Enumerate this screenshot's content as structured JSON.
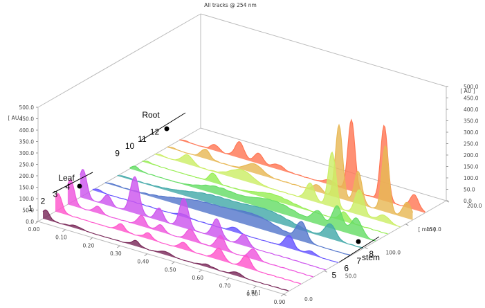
{
  "chart_data": {
    "type": "area",
    "title": "All tracks @ 254 nm",
    "xlabel": "[ Rf ]",
    "zlabel": "[ AU ]",
    "depth_label": "[ mm ]",
    "x_ticks": [
      "0.00",
      "0.10",
      "0.20",
      "0.30",
      "0.40",
      "0.50",
      "0.60",
      "0.70",
      "0.80",
      "0.90"
    ],
    "xlim": [
      0.0,
      0.9
    ],
    "z_ticks": [
      "0.0",
      "50.0",
      "100.0",
      "150.0",
      "200.0",
      "250.0",
      "300.0",
      "350.0",
      "400.0",
      "450.0",
      "500.0"
    ],
    "zlim": [
      0,
      500
    ],
    "depth_ticks": [
      "0.0",
      "50.0",
      "100.0",
      "150.0",
      "200.0"
    ],
    "depth_lim": [
      0,
      200
    ],
    "grid": false,
    "annotations": {
      "root": "Root",
      "leaf": "Leaf",
      "stem": "stem"
    },
    "series": [
      {
        "name": "1",
        "color": "#7a2a5a",
        "peaks": [
          [
            0.01,
            40,
            0.014
          ],
          [
            0.12,
            10,
            0.02
          ],
          [
            0.34,
            22,
            0.014
          ],
          [
            0.45,
            14,
            0.02
          ],
          [
            0.6,
            10,
            0.02
          ],
          [
            0.71,
            16,
            0.018
          ]
        ]
      },
      {
        "name": "2",
        "color": "#ff55cc",
        "peaks": [
          [
            0.01,
            80,
            0.014
          ],
          [
            0.24,
            30,
            0.014
          ],
          [
            0.34,
            25,
            0.014
          ],
          [
            0.47,
            30,
            0.016
          ],
          [
            0.6,
            50,
            0.016
          ],
          [
            0.7,
            55,
            0.016
          ]
        ]
      },
      {
        "name": "3",
        "color": "#ee55dd",
        "peaks": [
          [
            0.01,
            110,
            0.014
          ],
          [
            0.11,
            30,
            0.014
          ],
          [
            0.27,
            45,
            0.014
          ],
          [
            0.34,
            30,
            0.014
          ],
          [
            0.45,
            50,
            0.016
          ],
          [
            0.56,
            60,
            0.016
          ],
          [
            0.68,
            45,
            0.016
          ]
        ]
      },
      {
        "name": "4",
        "color": "#cc55ee",
        "peaks": [
          [
            0.01,
            125,
            0.014
          ],
          [
            0.1,
            45,
            0.014
          ],
          [
            0.2,
            160,
            0.016
          ],
          [
            0.29,
            55,
            0.014
          ],
          [
            0.38,
            130,
            0.016
          ],
          [
            0.5,
            80,
            0.016
          ],
          [
            0.6,
            50,
            0.016
          ]
        ]
      },
      {
        "name": "5",
        "color": "#6655ff",
        "peaks": [
          [
            0.02,
            10,
            0.014
          ],
          [
            0.33,
            12,
            0.02
          ],
          [
            0.52,
            20,
            0.016
          ],
          [
            0.72,
            55,
            0.016
          ],
          [
            0.8,
            15,
            0.016
          ]
        ]
      },
      {
        "name": "6",
        "color": "#5577cc",
        "peaks": [
          [
            0.03,
            5,
            0.02
          ],
          [
            0.35,
            40,
            0.1
          ],
          [
            0.55,
            50,
            0.08
          ],
          [
            0.72,
            80,
            0.018
          ]
        ]
      },
      {
        "name": "7",
        "color": "#44aaaa",
        "peaks": [
          [
            0.03,
            5,
            0.02
          ],
          [
            0.35,
            35,
            0.1
          ],
          [
            0.55,
            40,
            0.08
          ],
          [
            0.78,
            65,
            0.02
          ]
        ]
      },
      {
        "name": "8",
        "color": "#66dd66",
        "peaks": [
          [
            0.02,
            15,
            0.014
          ],
          [
            0.32,
            30,
            0.06
          ],
          [
            0.52,
            45,
            0.08
          ],
          [
            0.69,
            55,
            0.02
          ],
          [
            0.76,
            105,
            0.018
          ],
          [
            0.83,
            75,
            0.02
          ]
        ]
      },
      {
        "name": "9",
        "color": "#99ee55",
        "peaks": [
          [
            0.02,
            5,
            0.014
          ],
          [
            0.26,
            40,
            0.014
          ],
          [
            0.48,
            25,
            0.06
          ],
          [
            0.74,
            40,
            0.016
          ]
        ]
      },
      {
        "name": "10",
        "color": "#ccee66",
        "peaks": [
          [
            0.02,
            5,
            0.014
          ],
          [
            0.12,
            40,
            0.02
          ],
          [
            0.32,
            45,
            0.04
          ],
          [
            0.57,
            75,
            0.016
          ],
          [
            0.65,
            240,
            0.014
          ],
          [
            0.75,
            110,
            0.016
          ],
          [
            0.84,
            30,
            0.02
          ]
        ]
      },
      {
        "name": "11",
        "color": "#e8b855",
        "peaks": [
          [
            0.02,
            5,
            0.014
          ],
          [
            0.14,
            40,
            0.016
          ],
          [
            0.32,
            40,
            0.03
          ],
          [
            0.55,
            30,
            0.016
          ],
          [
            0.63,
            320,
            0.013
          ],
          [
            0.7,
            140,
            0.014
          ],
          [
            0.8,
            290,
            0.013
          ],
          [
            0.88,
            70,
            0.016
          ]
        ]
      },
      {
        "name": "12",
        "color": "#ff7755",
        "peaks": [
          [
            0.02,
            5,
            0.014
          ],
          [
            0.13,
            25,
            0.014
          ],
          [
            0.22,
            70,
            0.016
          ],
          [
            0.29,
            45,
            0.016
          ],
          [
            0.36,
            20,
            0.02
          ],
          [
            0.55,
            20,
            0.02
          ],
          [
            0.63,
            310,
            0.013
          ],
          [
            0.75,
            330,
            0.013
          ],
          [
            0.86,
            65,
            0.016
          ]
        ]
      }
    ]
  }
}
